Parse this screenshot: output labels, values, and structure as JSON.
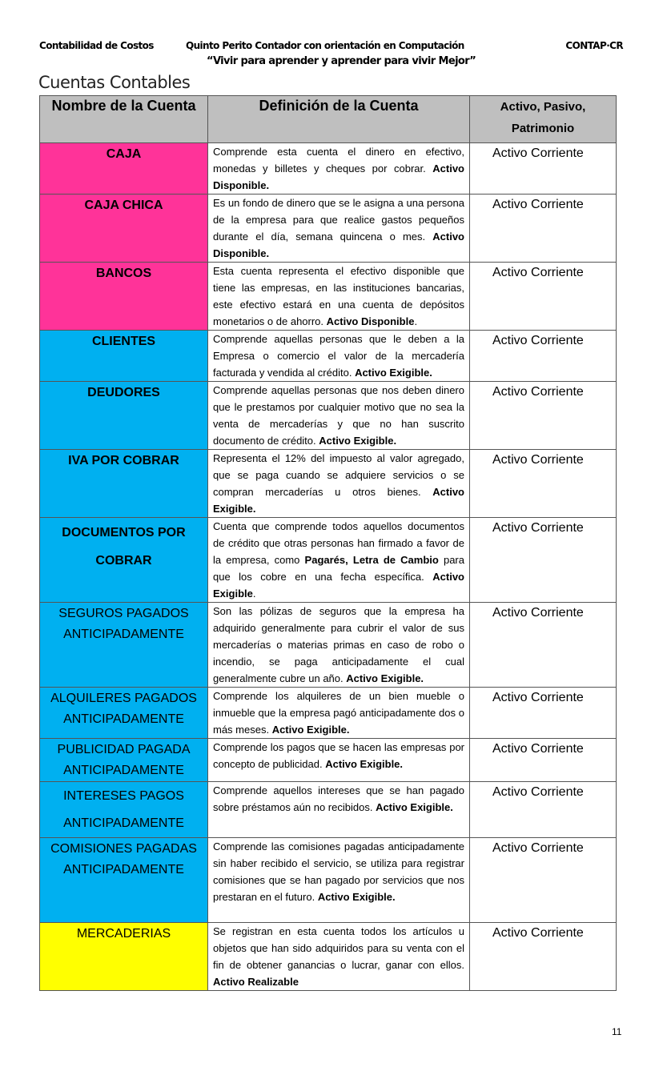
{
  "header": {
    "left": "Contabilidad de Costos",
    "center": "Quinto Perito Contador con orientación en Computación",
    "right": "CONTAP·CR",
    "motto": "“Vivir para aprender y aprender para vivir Mejor”"
  },
  "title": "Cuentas Contables",
  "table": {
    "columns": [
      "Nombre de la Cuenta",
      "Definición de la Cuenta",
      "Activo, Pasivo, Patrimonio"
    ],
    "colors": {
      "disponible": "#FF3399",
      "exigible": "#00B0F0",
      "realizable": "#FFFF00",
      "header": "#BFBFBF"
    },
    "rows": [
      {
        "name": "CAJA",
        "group": "disponible",
        "bold": true,
        "h": 63,
        "def": [
          {
            "t": "Comprende esta cuenta el dinero en efectivo, monedas y billetes y cheques por cobrar. "
          },
          {
            "t": "Activo Disponible.",
            "b": true
          }
        ],
        "class": "Activo Corriente"
      },
      {
        "name": "CAJA CHICA",
        "group": "disponible",
        "bold": true,
        "h": 84,
        "def": [
          {
            "t": "Es un fondo de dinero que se le asigna a una persona de la empresa para que realice gastos pequeños durante el día, semana quincena o mes. "
          },
          {
            "t": "Activo Disponible.",
            "b": true
          }
        ],
        "class": "Activo Corriente"
      },
      {
        "name": "BANCOS",
        "group": "disponible",
        "bold": true,
        "h": 84,
        "def": [
          {
            "t": "Esta cuenta representa el efectivo disponible que tiene las empresas, en las instituciones bancarias, este efectivo estará en una cuenta de depósitos monetarios o de ahorro.  "
          },
          {
            "t": "Activo Disponible",
            "b": true
          },
          {
            "t": "."
          }
        ],
        "class": "Activo Corriente"
      },
      {
        "name": "CLIENTES",
        "group": "exigible",
        "bold": true,
        "h": 63,
        "def": [
          {
            "t": "Comprende aquellas personas que le deben a la Empresa o comercio el valor de la mercadería facturada y vendida al crédito. "
          },
          {
            "t": "Activo Exigible.",
            "b": true
          }
        ],
        "class": "Activo Corriente"
      },
      {
        "name": "DEUDORES",
        "group": "exigible",
        "bold": true,
        "h": 84,
        "def": [
          {
            "t": "Comprende aquellas personas que nos deben dinero que le prestamos por cualquier motivo que no sea la venta de mercaderías y que no han suscrito documento de crédito. "
          },
          {
            "t": "Activo Exigible.",
            "b": true
          }
        ],
        "class": "Activo Corriente"
      },
      {
        "name": "IVA POR COBRAR",
        "group": "exigible",
        "bold": true,
        "h": 84,
        "def": [
          {
            "t": "Representa el 12% del impuesto al valor agregado, que se paga cuando se adquiere servicios o se compran mercaderías u otros bienes. "
          },
          {
            "t": "Activo Exigible.",
            "b": true
          }
        ],
        "class": "Activo Corriente"
      },
      {
        "name": "DOCUMENTOS POR COBRAR",
        "group": "exigible",
        "bold": true,
        "h": 106,
        "nameLH": 35,
        "def": [
          {
            "t": "Cuenta que comprende todos aquellos documentos de crédito que otras personas han firmado a favor de la empresa, como "
          },
          {
            "t": "Pagarés, Letra de Cambio",
            "b": true
          },
          {
            "t": " para que los cobre en una fecha específica. "
          },
          {
            "t": "Activo Exigible",
            "b": true
          },
          {
            "t": "."
          }
        ],
        "class": "Activo Corriente"
      },
      {
        "name": "SEGUROS PAGADOS ANTICIPADAMENTE",
        "group": "exigible",
        "bold": false,
        "h": 105,
        "def": [
          {
            "t": "Son las pólizas de seguros que la empresa ha adquirido generalmente para cubrir el valor de sus mercaderías o materias primas en caso de robo o incendio, se paga anticipadamente el cual generalmente cubre un año. "
          },
          {
            "t": "Activo Exigible.",
            "b": true
          }
        ],
        "class": "Activo Corriente"
      },
      {
        "name": "ALQUILERES PAGADOS ANTICIPADAMENTE",
        "group": "exigible",
        "bold": false,
        "h": 63,
        "def": [
          {
            "t": "Comprende los alquileres de un bien mueble o inmueble que la empresa pagó anticipadamente dos o más meses. "
          },
          {
            "t": "Activo Exigible.",
            "b": true
          }
        ],
        "class": "Activo Corriente"
      },
      {
        "name": "PUBLICIDAD PAGADA ANTICIPADAMENTE",
        "group": "exigible",
        "bold": false,
        "h": 53,
        "def": [
          {
            "t": "Comprende los pagos que se hacen las empresas por concepto de publicidad. "
          },
          {
            "t": "Activo Exigible.",
            "b": true
          }
        ],
        "class": "Activo Corriente"
      },
      {
        "name": "INTERESES PAGOS ANTICIPADAMENTE",
        "group": "exigible",
        "bold": false,
        "h": 70,
        "nameLH": 34,
        "def": [
          {
            "t": "Comprende aquellos intereses que se han pagado sobre préstamos aún no recibidos. "
          },
          {
            "t": "Activo Exigible.",
            "b": true
          }
        ],
        "class": "Activo Corriente"
      },
      {
        "name": "COMISIONES PAGADAS ANTICIPADAMENTE",
        "group": "exigible",
        "bold": false,
        "h": 106,
        "def": [
          {
            "t": "Comprende las comisiones pagadas anticipadamente sin haber recibido el servicio, se utiliza para registrar comisiones que se han pagado por servicios que nos prestaran en el futuro. "
          },
          {
            "t": "Activo Exigible.",
            "b": true
          }
        ],
        "class": "Activo Corriente"
      },
      {
        "name": "MERCADERIAS",
        "group": "realizable",
        "bold": false,
        "h": 85,
        "def": [
          {
            "t": "Se registran en esta cuenta todos los artículos u objetos que han sido adquiridos para su venta con el fin de obtener ganancias o lucrar, ganar con ellos. "
          },
          {
            "t": "Activo Realizable",
            "b": true
          }
        ],
        "class": "Activo Corriente"
      }
    ]
  },
  "page_number": "11"
}
